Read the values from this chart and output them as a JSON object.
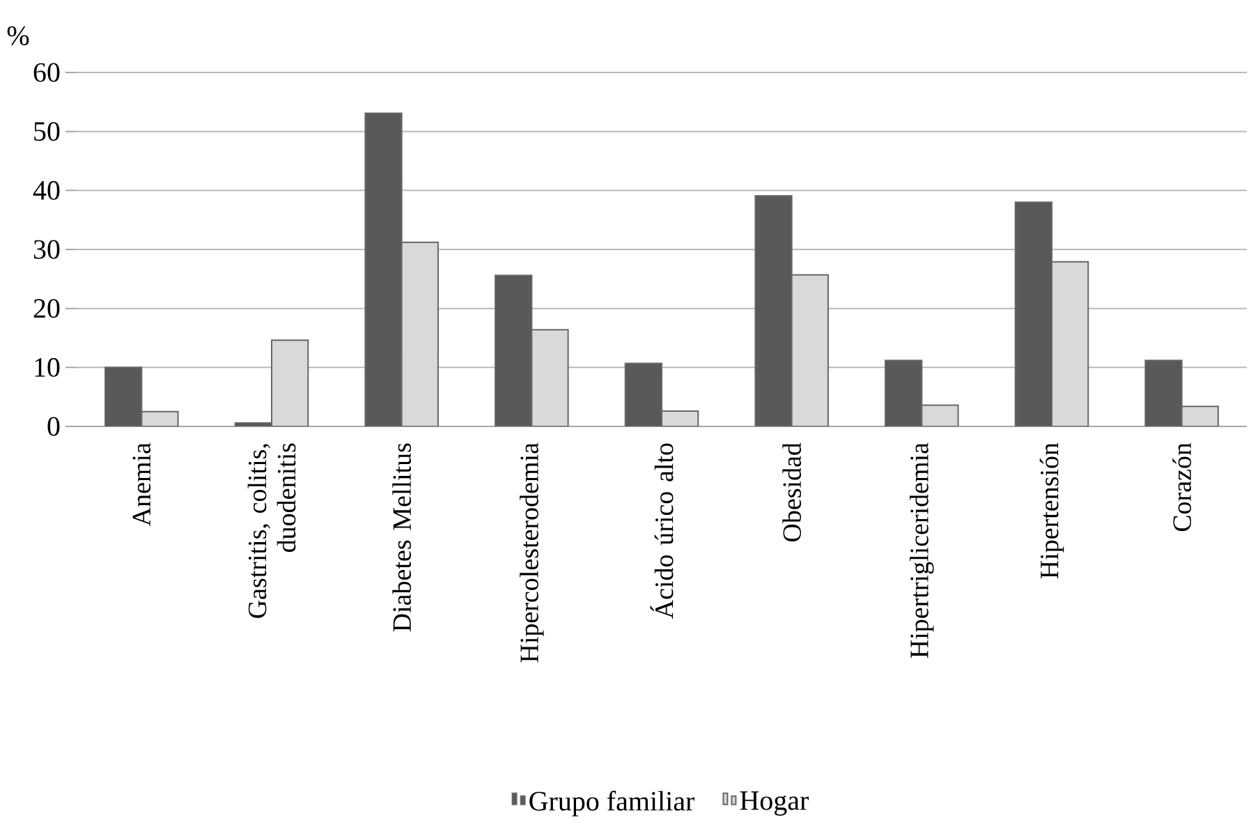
{
  "chart_data": {
    "type": "bar",
    "ylabel": "%",
    "categories": [
      "Anemia",
      "Gastritis, colitis, duodenitis",
      "Diabetes Mellitus",
      "Hipercolesterodemia",
      "Ácido úrico alto",
      "Obesidad",
      "Hipertrigliceridemia",
      "Hipertensión",
      "Corazón"
    ],
    "series": [
      {
        "name": "Grupo familiar",
        "color": "#58595b",
        "values": [
          10.0,
          0.6,
          53.1,
          25.6,
          10.7,
          39.1,
          11.2,
          38.0,
          11.2
        ]
      },
      {
        "name": "Hogar",
        "color": "#d9d9d9",
        "values": [
          2.5,
          14.6,
          31.2,
          16.4,
          2.6,
          25.7,
          3.6,
          27.9,
          3.4
        ]
      }
    ],
    "ylim": [
      0,
      60
    ],
    "yticks": [
      0,
      10,
      20,
      30,
      40,
      50,
      60
    ],
    "grid": "y",
    "legend": "bottom"
  }
}
